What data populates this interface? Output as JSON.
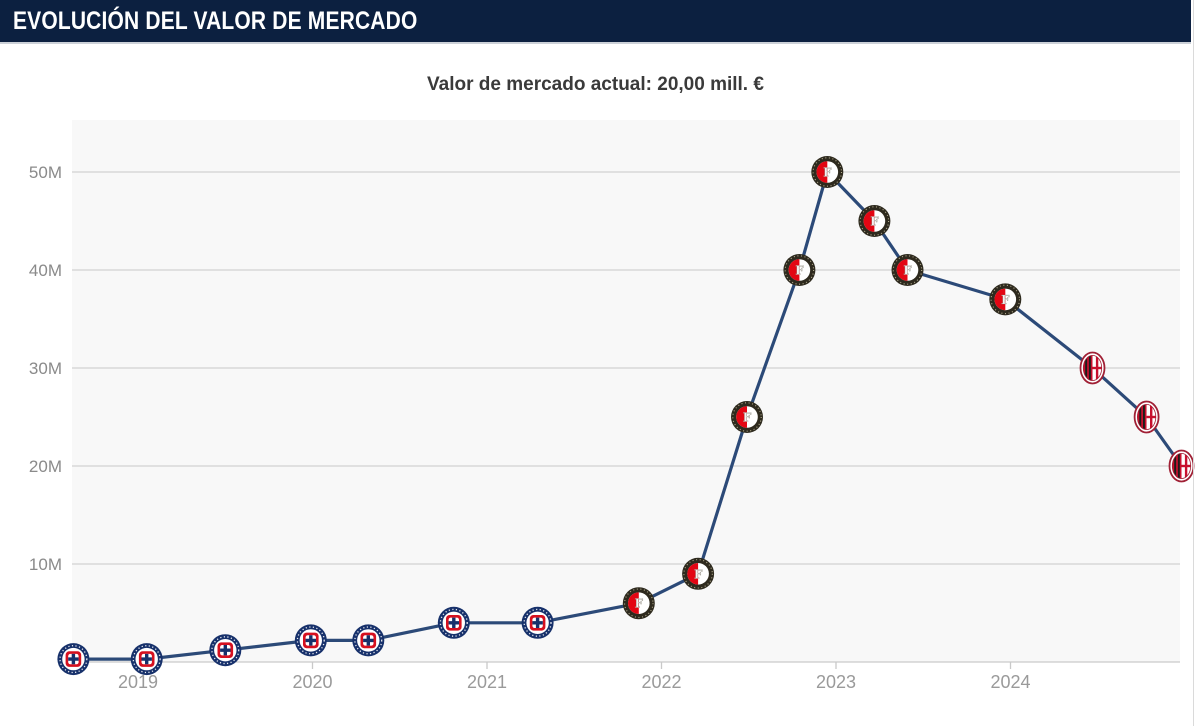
{
  "header": {
    "title": "EVOLUCIÓN DEL VALOR DE MERCADO"
  },
  "subtitle": {
    "label": "Valor de mercado actual:",
    "value": "20,00 mill. €"
  },
  "chart_data": {
    "type": "line",
    "title": "EVOLUCIÓN DEL VALOR DE MERCADO",
    "subtitle": "Valor de mercado actual: 20,00 mill. €",
    "unit": "mill. €",
    "xlabel": "",
    "ylabel": "",
    "x_tick_labels": [
      "2019",
      "2020",
      "2021",
      "2022",
      "2023",
      "2024"
    ],
    "y_tick_labels": [
      "10M",
      "20M",
      "30M",
      "40M",
      "50M"
    ],
    "xlim": [
      2018.45,
      2025.05
    ],
    "ylim": [
      0,
      55.3
    ],
    "grid": true,
    "legend": "none",
    "marker_style": "club-crest",
    "clubs": [
      {
        "id": "cruz-azul",
        "name": "Cruz Azul"
      },
      {
        "id": "feyenoord",
        "name": "Feyenoord"
      },
      {
        "id": "ac-milan",
        "name": "AC Milan"
      }
    ],
    "points": [
      {
        "year": 2018.63,
        "value_mill": 0.3,
        "club": "cruz-azul"
      },
      {
        "year": 2019.05,
        "value_mill": 0.3,
        "club": "cruz-azul"
      },
      {
        "year": 2019.5,
        "value_mill": 1.2,
        "club": "cruz-azul"
      },
      {
        "year": 2019.99,
        "value_mill": 2.2,
        "club": "cruz-azul"
      },
      {
        "year": 2020.32,
        "value_mill": 2.2,
        "club": "cruz-azul"
      },
      {
        "year": 2020.81,
        "value_mill": 4.0,
        "club": "cruz-azul"
      },
      {
        "year": 2021.29,
        "value_mill": 4.0,
        "club": "cruz-azul"
      },
      {
        "year": 2021.87,
        "value_mill": 6.0,
        "club": "feyenoord"
      },
      {
        "year": 2022.21,
        "value_mill": 9.0,
        "club": "feyenoord"
      },
      {
        "year": 2022.49,
        "value_mill": 25.0,
        "club": "feyenoord"
      },
      {
        "year": 2022.79,
        "value_mill": 40.0,
        "club": "feyenoord"
      },
      {
        "year": 2022.95,
        "value_mill": 50.0,
        "club": "feyenoord"
      },
      {
        "year": 2023.22,
        "value_mill": 45.0,
        "club": "feyenoord"
      },
      {
        "year": 2023.41,
        "value_mill": 40.0,
        "club": "feyenoord"
      },
      {
        "year": 2023.97,
        "value_mill": 37.0,
        "club": "feyenoord"
      },
      {
        "year": 2024.47,
        "value_mill": 30.0,
        "club": "ac-milan"
      },
      {
        "year": 2024.78,
        "value_mill": 25.0,
        "club": "ac-milan"
      },
      {
        "year": 2024.98,
        "value_mill": 20.0,
        "club": "ac-milan"
      }
    ],
    "colors": {
      "header_bg": "#0c2040",
      "header_text": "#ffffff",
      "subtitle_text": "#3a3a3a",
      "line": "#2c4a78",
      "plot_bg": "#f8f8f8",
      "gridline": "#d2d2d2",
      "axis": "#c9c9c9",
      "x_tick_label": "#9a9a9a",
      "y_tick_label": "#8a8a8a",
      "cruz_azul_navy": "#17316b",
      "cruz_azul_red": "#d6101f",
      "feyenoord_ring": "#2e2a1e",
      "feyenoord_red": "#e30613",
      "milan_ring": "#a02035",
      "milan_red": "#c8102e",
      "milan_black": "#1d1d1b"
    }
  }
}
